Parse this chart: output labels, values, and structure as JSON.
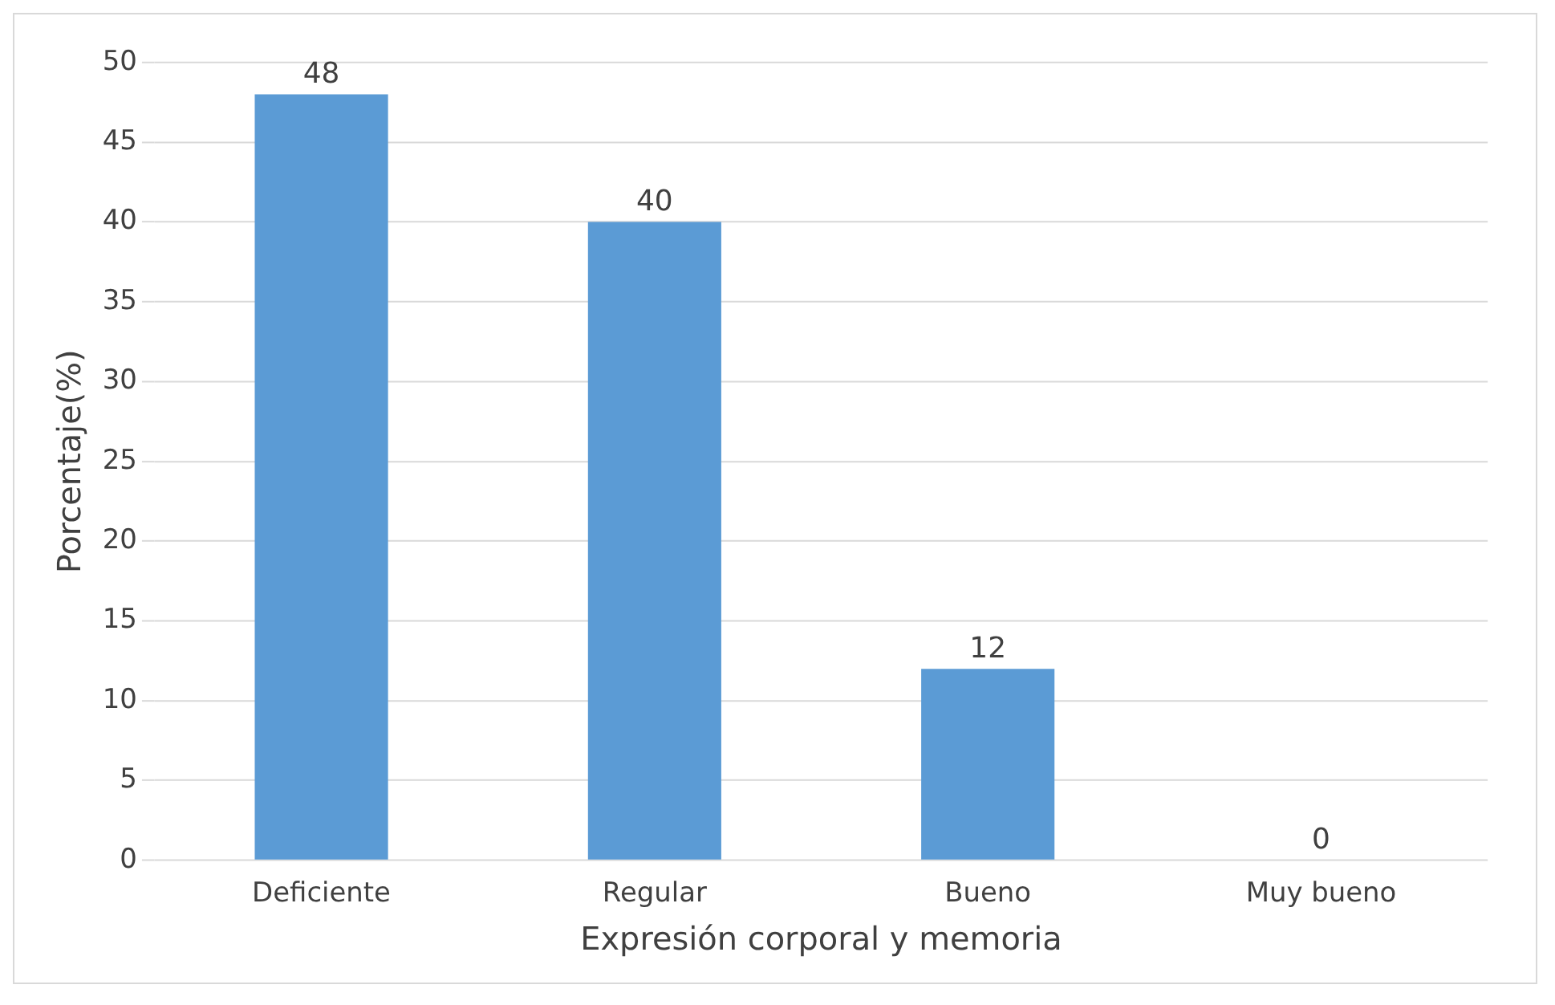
{
  "chart_data": {
    "type": "bar",
    "xlabel": "Expresión corporal y memoria",
    "ylabel": "Porcentaje(%)",
    "categories": [
      "Deficiente",
      "Regular",
      "Bueno",
      "Muy bueno"
    ],
    "values": [
      48,
      40,
      12,
      0
    ],
    "color": "#5b9bd5",
    "ylim": [
      0,
      50
    ],
    "yticks": [
      0,
      5,
      10,
      15,
      20,
      25,
      30,
      35,
      40,
      45,
      50
    ],
    "grid": "y",
    "data_labels": true
  }
}
